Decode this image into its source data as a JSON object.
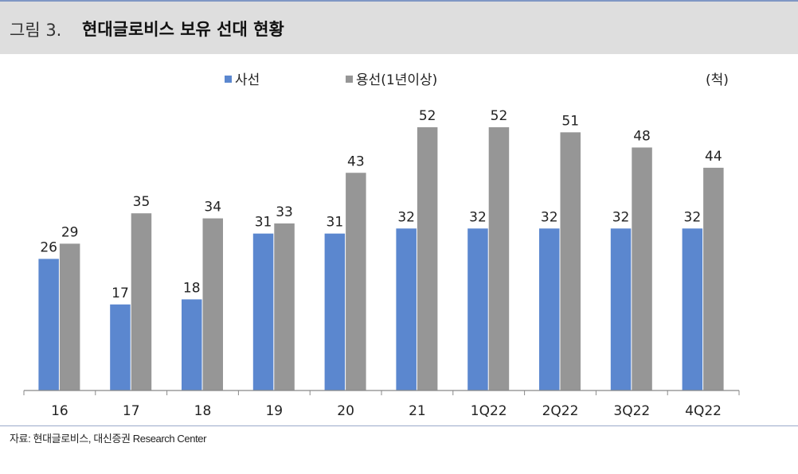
{
  "header": {
    "figure_label": "그림 3.",
    "title": "현대글로비스 보유 선대 현황"
  },
  "unit": "(척)",
  "source": "자료: 현대글로비스, 대신증권 Research Center",
  "colors": {
    "series1": "#5b87cf",
    "series2": "#969696",
    "header_bg": "#dedede",
    "accent_line": "#7f97c4"
  },
  "chart_data": {
    "type": "bar",
    "title": "현대글로비스 보유 선대 현황",
    "xlabel": "",
    "ylabel": "",
    "categories": [
      "16",
      "17",
      "18",
      "19",
      "20",
      "21",
      "1Q22",
      "2Q22",
      "3Q22",
      "4Q22"
    ],
    "series": [
      {
        "name": "사선",
        "values": [
          26,
          17,
          18,
          31,
          31,
          32,
          32,
          32,
          32,
          32
        ]
      },
      {
        "name": "용선(1년이상)",
        "values": [
          29,
          35,
          34,
          33,
          43,
          52,
          52,
          51,
          48,
          44
        ]
      }
    ],
    "ylim": [
      0,
      52
    ],
    "grid": false,
    "legend": "top-center",
    "data_labels": true
  }
}
